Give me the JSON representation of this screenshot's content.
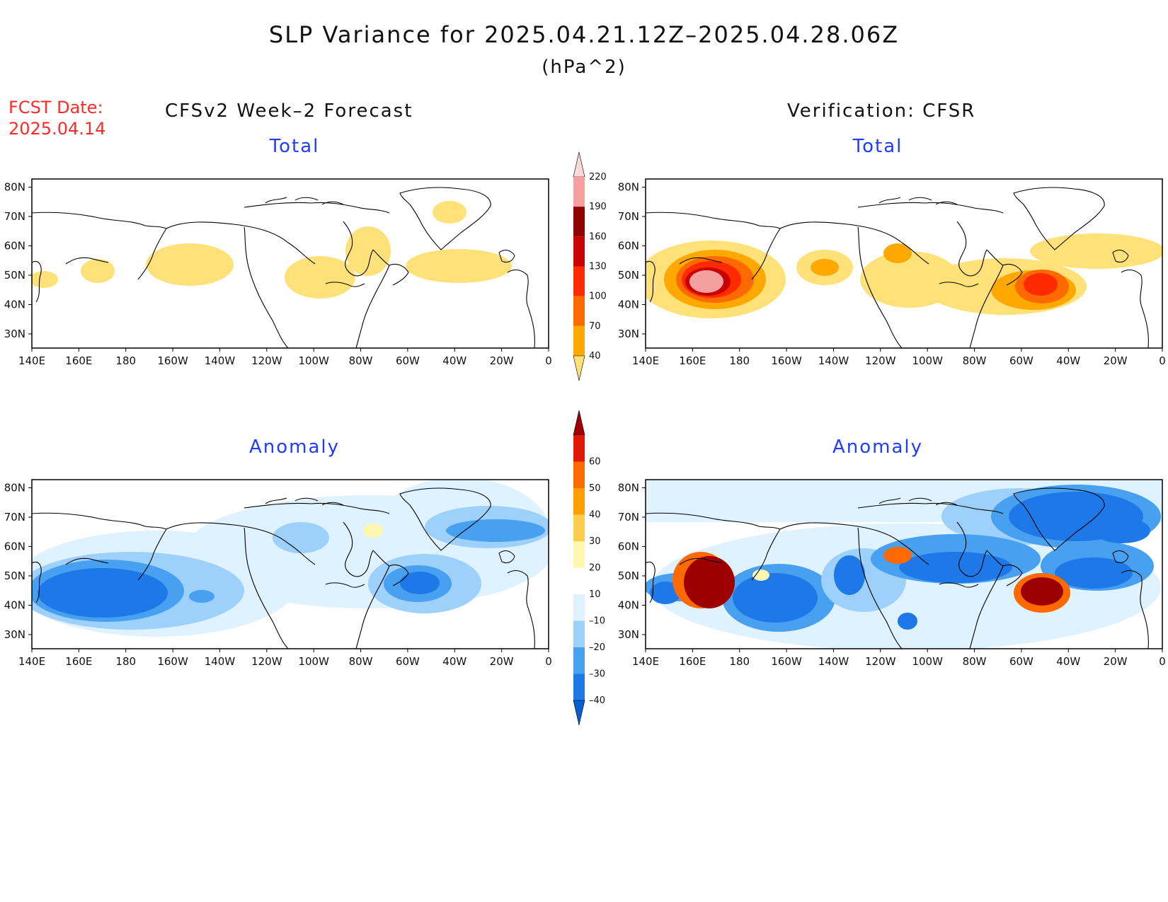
{
  "title": "SLP Variance for 2025.04.21.12Z–2025.04.28.06Z",
  "units": "(hPa^2)",
  "fcst_date": {
    "label": "FCST Date:",
    "value": "2025.04.14"
  },
  "left_heading": "CFSv2 Week–2 Forecast",
  "right_heading": "Verification: CFSR",
  "panel_titles": {
    "total": "Total",
    "anomaly": "Anomaly"
  },
  "x_ticks": [
    "140E",
    "160E",
    "180",
    "160W",
    "140W",
    "120W",
    "100W",
    "80W",
    "60W",
    "40W",
    "20W",
    "0"
  ],
  "y_ticks": [
    "30N",
    "40N",
    "50N",
    "60N",
    "70N",
    "80N"
  ],
  "colorbars": {
    "total": {
      "levels": [
        "40",
        "70",
        "100",
        "130",
        "160",
        "190",
        "220"
      ],
      "colors": [
        "#ffe17a",
        "#ffa800",
        "#ff6a00",
        "#ff2a00",
        "#c80000",
        "#8f0000",
        "#f4a0a0",
        "#fcd8d8"
      ]
    },
    "anomaly": {
      "levels": [
        "–40",
        "–30",
        "–20",
        "–10",
        "10",
        "20",
        "30",
        "40",
        "50",
        "60"
      ],
      "colors": [
        "#0a5fd0",
        "#1f78e8",
        "#47a0f0",
        "#9dd0fb",
        "#dff2ff",
        "#ffffff",
        "#fff6b0",
        "#ffcd4d",
        "#ffa000",
        "#ff6a00",
        "#e01a00",
        "#9c0000"
      ]
    }
  },
  "colors": {
    "title_red": "#ff2a2a",
    "panel_title_blue": "#1f3cff"
  }
}
